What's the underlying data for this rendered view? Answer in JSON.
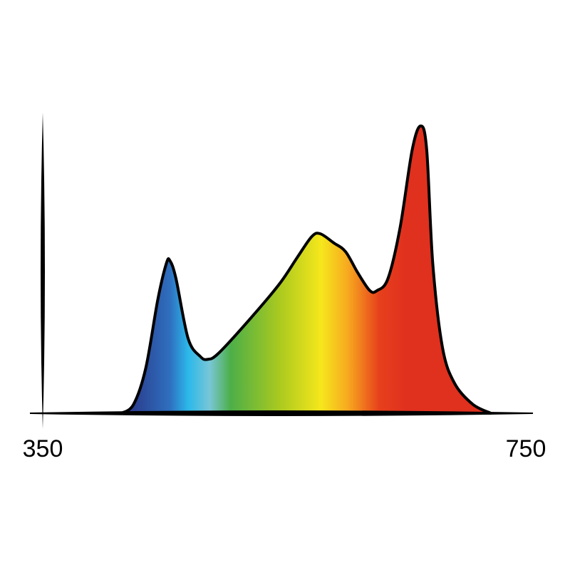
{
  "chart_data": {
    "type": "area",
    "title": "",
    "xlabel": "",
    "ylabel": "",
    "xlim": [
      350,
      750
    ],
    "ylim": [
      0,
      1
    ],
    "grid": false,
    "x_tick_labels": [
      "350",
      "750"
    ],
    "x_ticks": [
      350,
      750
    ],
    "series": [
      {
        "x": [
          415,
          425,
          435,
          445,
          452,
          455,
          460,
          470,
          480,
          486,
          495,
          520,
          545,
          560,
          572,
          579,
          590,
          600,
          610,
          620,
          626,
          635,
          645,
          655,
          662,
          667,
          672,
          680,
          690,
          705,
          720
        ],
        "y": [
          0,
          0.03,
          0.15,
          0.38,
          0.5,
          0.51,
          0.45,
          0.25,
          0.19,
          0.18,
          0.2,
          0.31,
          0.43,
          0.52,
          0.59,
          0.6,
          0.57,
          0.54,
          0.47,
          0.41,
          0.41,
          0.45,
          0.62,
          0.88,
          0.96,
          0.88,
          0.5,
          0.22,
          0.1,
          0.03,
          0
        ]
      }
    ],
    "fill_gradient": [
      {
        "nm": 425,
        "color": "#2b3f8f"
      },
      {
        "nm": 455,
        "color": "#2f6fbf"
      },
      {
        "nm": 470,
        "color": "#2bb8ea"
      },
      {
        "nm": 488,
        "color": "#79c6d6"
      },
      {
        "nm": 505,
        "color": "#4caf48"
      },
      {
        "nm": 545,
        "color": "#a9c91f"
      },
      {
        "nm": 580,
        "color": "#f6e71c"
      },
      {
        "nm": 602,
        "color": "#f7a81f"
      },
      {
        "nm": 628,
        "color": "#e6401c"
      },
      {
        "nm": 650,
        "color": "#e0301e"
      }
    ]
  }
}
